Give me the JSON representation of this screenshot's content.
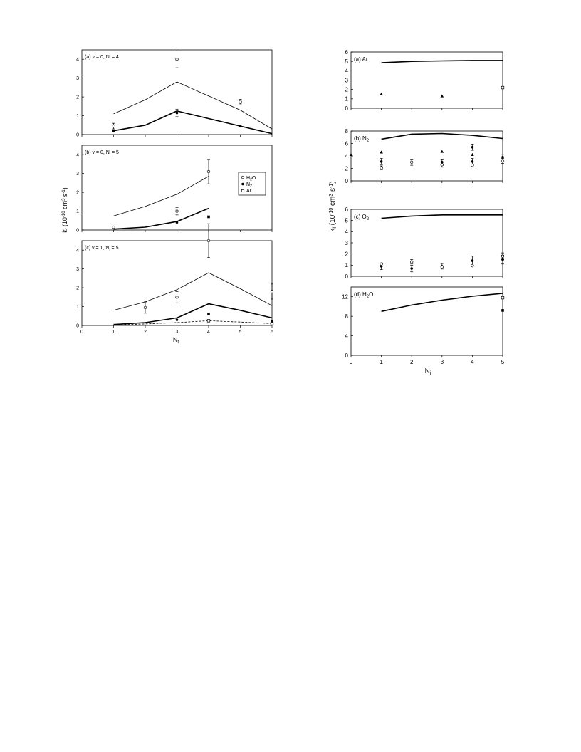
{
  "left_figure": {
    "ylabel": "k",
    "ylabel_sub": "f",
    "ylabel_unit": " (10",
    "ylabel_exp": "-10",
    "ylabel_unit2": " cm",
    "ylabel_exp2": "3",
    "ylabel_unit3": " s",
    "ylabel_exp3": "-1",
    "ylabel_close": ")",
    "xlabel": "N",
    "xlabel_sub": "f",
    "legend": [
      {
        "label": "H",
        "sub": "2",
        "tail": "O",
        "marker": "open-circle"
      },
      {
        "label": "N",
        "sub": "2",
        "tail": "",
        "marker": "filled-circle"
      },
      {
        "label": "Ar",
        "sub": "",
        "tail": "",
        "marker": "open-square"
      }
    ]
  },
  "right_figure": {
    "ylabel": "k",
    "ylabel_sub": "i",
    "ylabel_unit": " (10",
    "ylabel_exp": "-10",
    "ylabel_unit2": " cm",
    "ylabel_exp2": "3",
    "ylabel_unit3": " s",
    "ylabel_exp3": "-1",
    "ylabel_close": ")",
    "xlabel": "N",
    "xlabel_sub": "i"
  },
  "chart_data": [
    {
      "type": "line",
      "panel": "left-a",
      "label": "(a)  v = 0, N",
      "label_sub": "i",
      "label_tail": " = 4",
      "xlim": [
        0,
        6
      ],
      "ylim": [
        0,
        4.5
      ],
      "yticks": [
        0,
        1,
        2,
        3,
        4
      ],
      "xticks": [],
      "series": [
        {
          "style": "thin",
          "x": [
            1,
            2,
            3,
            4,
            5,
            6
          ],
          "y": [
            1.1,
            1.85,
            2.8,
            2.05,
            1.3,
            0.3
          ]
        },
        {
          "style": "thick",
          "x": [
            1,
            2,
            3,
            4,
            5,
            6
          ],
          "y": [
            0.2,
            0.5,
            1.25,
            0.85,
            0.45,
            0.05
          ]
        }
      ],
      "points": [
        {
          "marker": "open-circle",
          "x": 1,
          "y": 0.45,
          "err": 0.15
        },
        {
          "marker": "open-circle",
          "x": 3,
          "y": 4.0,
          "err": 0.45
        },
        {
          "marker": "open-circle",
          "x": 5,
          "y": 1.75,
          "err": 0.12
        },
        {
          "marker": "filled-circle",
          "x": 1,
          "y": 0.2,
          "err": 0
        },
        {
          "marker": "filled-circle",
          "x": 3,
          "y": 1.15,
          "err": 0.2
        },
        {
          "marker": "filled-circle",
          "x": 5,
          "y": 0.45,
          "err": 0
        }
      ]
    },
    {
      "type": "line",
      "panel": "left-b",
      "label": "(b)  v = 0, N",
      "label_sub": "i",
      "label_tail": " = 5",
      "xlim": [
        0,
        6
      ],
      "ylim": [
        0,
        4.5
      ],
      "yticks": [
        0,
        1,
        2,
        3,
        4
      ],
      "xticks": [],
      "series": [
        {
          "style": "thin",
          "x": [
            1,
            2,
            3,
            4
          ],
          "y": [
            0.75,
            1.25,
            1.9,
            2.85
          ]
        },
        {
          "style": "thick",
          "x": [
            1,
            2,
            3,
            4
          ],
          "y": [
            0.05,
            0.15,
            0.45,
            1.15
          ]
        }
      ],
      "points": [
        {
          "marker": "open-circle",
          "x": 1,
          "y": 0.15,
          "err": 0
        },
        {
          "marker": "open-circle",
          "x": 3,
          "y": 1.0,
          "err": 0.2
        },
        {
          "marker": "open-circle",
          "x": 4,
          "y": 3.1,
          "err": 0.65
        },
        {
          "marker": "filled-circle",
          "x": 3,
          "y": 0.4,
          "err": 0
        },
        {
          "marker": "filled-square",
          "x": 4,
          "y": 0.7,
          "err": 0
        }
      ]
    },
    {
      "type": "line",
      "panel": "left-c",
      "label": "(c)  v = 1, N",
      "label_sub": "i",
      "label_tail": " = 5",
      "xlim": [
        0,
        6
      ],
      "ylim": [
        0,
        4.5
      ],
      "yticks": [
        0,
        1,
        2,
        3,
        4
      ],
      "xticks": [
        0,
        1,
        2,
        3,
        4,
        5,
        6
      ],
      "series": [
        {
          "style": "thin",
          "x": [
            1,
            2,
            3,
            4,
            5,
            6
          ],
          "y": [
            0.8,
            1.25,
            1.9,
            2.8,
            1.95,
            1.05
          ]
        },
        {
          "style": "thick",
          "x": [
            1,
            2,
            3,
            4,
            5,
            6
          ],
          "y": [
            0.05,
            0.15,
            0.4,
            1.15,
            0.8,
            0.4
          ]
        },
        {
          "style": "dashed",
          "x": [
            1,
            2,
            3,
            4,
            5,
            6
          ],
          "y": [
            0.02,
            0.08,
            0.15,
            0.25,
            0.18,
            0.1
          ]
        }
      ],
      "points": [
        {
          "marker": "open-circle",
          "x": 2,
          "y": 0.95,
          "err": 0.3
        },
        {
          "marker": "open-circle",
          "x": 3,
          "y": 1.5,
          "err": 0.3
        },
        {
          "marker": "open-circle",
          "x": 4,
          "y": 4.5,
          "err": 0.9
        },
        {
          "marker": "open-circle",
          "x": 6,
          "y": 1.8,
          "err": 0.4
        },
        {
          "marker": "filled-circle",
          "x": 3,
          "y": 0.3,
          "err": 0
        },
        {
          "marker": "filled-square",
          "x": 4,
          "y": 0.6,
          "err": 0
        },
        {
          "marker": "filled-square",
          "x": 6,
          "y": 0.2,
          "err": 0
        },
        {
          "marker": "open-square",
          "x": 4,
          "y": 0.25,
          "err": 0
        },
        {
          "marker": "open-square",
          "x": 6,
          "y": 0.1,
          "err": 0
        }
      ]
    },
    {
      "type": "line",
      "panel": "right-a",
      "label": "(a)  Ar",
      "label_sub": "",
      "label_tail": "",
      "xlim": [
        0,
        5
      ],
      "ylim": [
        0,
        6
      ],
      "yticks": [
        0,
        1,
        2,
        3,
        4,
        5,
        6
      ],
      "xticks": [],
      "series": [
        {
          "style": "thick",
          "x": [
            1,
            2,
            3,
            4,
            5
          ],
          "y": [
            4.85,
            5.0,
            5.05,
            5.1,
            5.1
          ]
        }
      ],
      "points": [
        {
          "marker": "filled-triangle",
          "x": 1,
          "y": 1.5,
          "err": 0
        },
        {
          "marker": "filled-triangle",
          "x": 3,
          "y": 1.3,
          "err": 0
        },
        {
          "marker": "open-square",
          "x": 5,
          "y": 2.2,
          "err": 0
        }
      ]
    },
    {
      "type": "line",
      "panel": "right-b",
      "label": "(b)  N",
      "label_sub": "2",
      "label_tail": "",
      "xlim": [
        0,
        5
      ],
      "ylim": [
        0,
        8
      ],
      "yticks": [
        0,
        2,
        4,
        6,
        8
      ],
      "xticks": [],
      "series": [
        {
          "style": "thick",
          "x": [
            1,
            2,
            3,
            4,
            5
          ],
          "y": [
            6.7,
            7.5,
            7.6,
            7.3,
            6.8
          ]
        }
      ],
      "points": [
        {
          "marker": "filled-triangle",
          "x": 0,
          "y": 4.2,
          "err": 0
        },
        {
          "marker": "filled-triangle",
          "x": 1,
          "y": 4.6,
          "err": 0
        },
        {
          "marker": "filled-triangle",
          "x": 3,
          "y": 4.7,
          "err": 0
        },
        {
          "marker": "filled-triangle",
          "x": 4,
          "y": 4.2,
          "err": 0
        },
        {
          "marker": "filled-circle",
          "x": 1,
          "y": 3.1,
          "err": 0.5
        },
        {
          "marker": "filled-circle",
          "x": 3,
          "y": 3.0,
          "err": 0.5
        },
        {
          "marker": "filled-circle",
          "x": 4,
          "y": 5.4,
          "err": 0.5
        },
        {
          "marker": "filled-circle",
          "x": 4,
          "y": 3.1,
          "err": 0.5
        },
        {
          "marker": "filled-circle",
          "x": 5,
          "y": 3.8,
          "err": 0.4
        },
        {
          "marker": "open-circle",
          "x": 1,
          "y": 2.1,
          "err": 0.3
        },
        {
          "marker": "open-circle",
          "x": 2,
          "y": 3.0,
          "err": 0.5
        },
        {
          "marker": "open-circle",
          "x": 3,
          "y": 2.6,
          "err": 0.4
        },
        {
          "marker": "open-circle",
          "x": 4,
          "y": 2.5,
          "err": 0
        },
        {
          "marker": "open-circle",
          "x": 5,
          "y": 3.2,
          "err": 0.4
        }
      ]
    },
    {
      "type": "line",
      "panel": "right-c",
      "label": "(c)  O",
      "label_sub": "2",
      "label_tail": "",
      "xlim": [
        0,
        5
      ],
      "ylim": [
        0,
        6
      ],
      "yticks": [
        0,
        1,
        2,
        3,
        4,
        5,
        6
      ],
      "xticks": [],
      "series": [
        {
          "style": "thick",
          "x": [
            1,
            2,
            3,
            4,
            5
          ],
          "y": [
            5.2,
            5.4,
            5.5,
            5.5,
            5.5
          ]
        }
      ],
      "points": [
        {
          "marker": "filled-circle",
          "x": 1,
          "y": 0.9,
          "err": 0.3
        },
        {
          "marker": "filled-circle",
          "x": 2,
          "y": 0.7,
          "err": 0.3
        },
        {
          "marker": "filled-circle",
          "x": 3,
          "y": 0.9,
          "err": 0.25
        },
        {
          "marker": "filled-circle",
          "x": 4,
          "y": 1.4,
          "err": 0.4
        },
        {
          "marker": "filled-circle",
          "x": 5,
          "y": 1.5,
          "err": 0.4
        },
        {
          "marker": "open-circle",
          "x": 1,
          "y": 1.1,
          "err": 0
        },
        {
          "marker": "open-circle",
          "x": 2,
          "y": 1.3,
          "err": 0.2
        },
        {
          "marker": "open-circle",
          "x": 3,
          "y": 0.85,
          "err": 0
        },
        {
          "marker": "open-circle",
          "x": 4,
          "y": 0.95,
          "err": 0
        },
        {
          "marker": "open-circle",
          "x": 5,
          "y": 1.8,
          "err": 0.3
        }
      ]
    },
    {
      "type": "line",
      "panel": "right-d",
      "label": "(d)  H",
      "label_sub": "2",
      "label_tail": "O",
      "xlim": [
        0,
        5
      ],
      "ylim": [
        0,
        14
      ],
      "yticks": [
        0,
        4,
        8,
        12
      ],
      "xticks": [
        0,
        1,
        2,
        3,
        4,
        5
      ],
      "series": [
        {
          "style": "thick",
          "x": [
            1,
            2,
            3,
            4,
            5
          ],
          "y": [
            9.0,
            10.3,
            11.3,
            12.1,
            12.7
          ]
        }
      ],
      "points": [
        {
          "marker": "open-square",
          "x": 5,
          "y": 11.8,
          "err": 0
        },
        {
          "marker": "filled-square",
          "x": 5,
          "y": 9.2,
          "err": 0
        }
      ]
    }
  ]
}
